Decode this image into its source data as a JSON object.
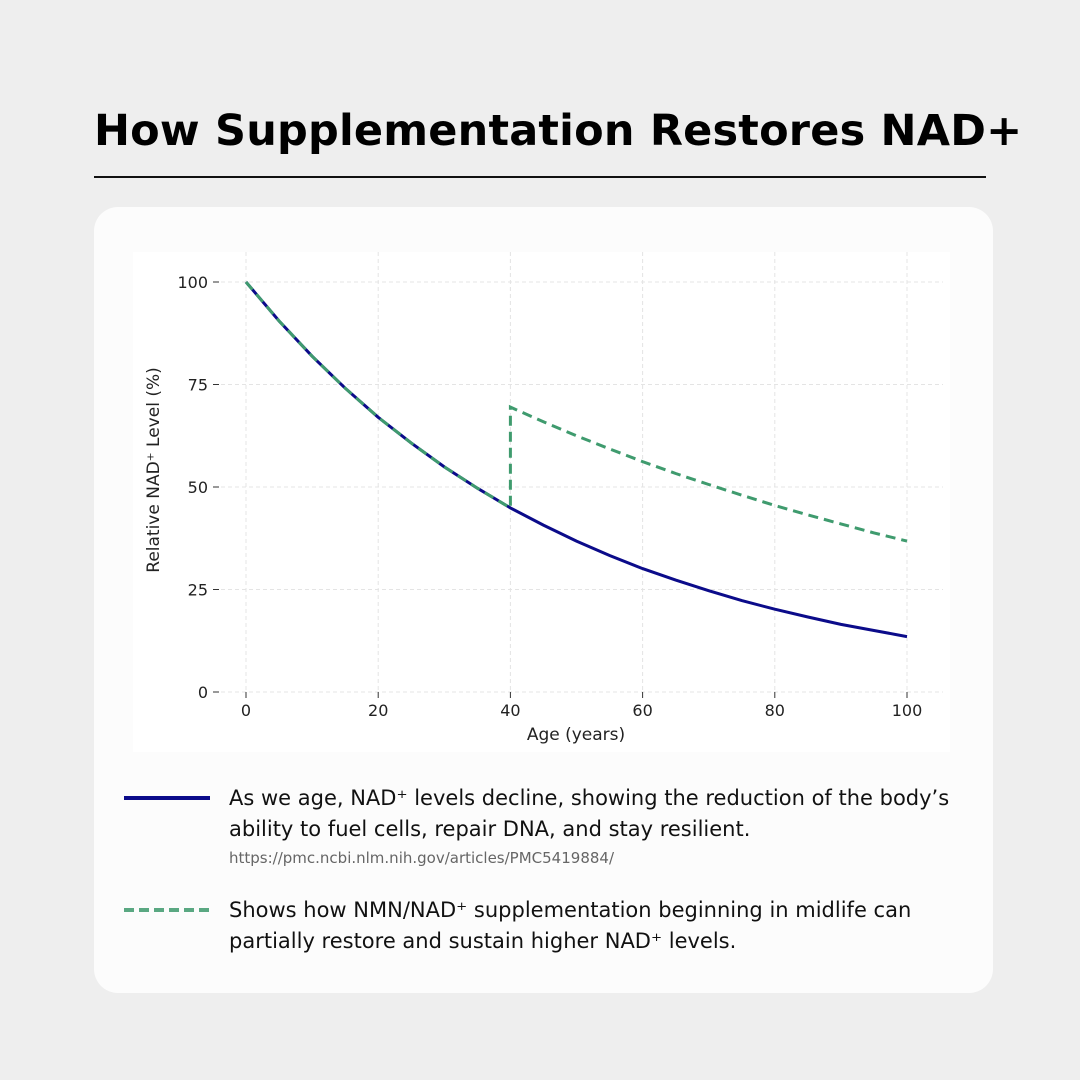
{
  "title": "How Supplementation Restores NAD+",
  "legend": [
    {
      "text": "As we age, NAD⁺ levels decline, showing the reduction of the body’s ability to fuel cells, repair DNA, and stay resilient.",
      "source": "https://pmc.ncbi.nlm.nih.gov/articles/PMC5419884/",
      "color": "#0b0b8a",
      "style": "solid"
    },
    {
      "text": "Shows how NMN/NAD⁺ supplementation beginning in midlife can partially restore and sustain higher NAD⁺ levels.",
      "color": "#3f9b6e",
      "style": "dashed"
    }
  ],
  "chart_data": {
    "type": "line",
    "xlabel": "Age (years)",
    "ylabel": "Relative NAD⁺ Level (%)",
    "xlim": [
      -5,
      105
    ],
    "ylim": [
      0,
      105
    ],
    "xticks": [
      "0",
      "20",
      "40",
      "60",
      "80",
      "100"
    ],
    "yticks": [
      "0",
      "25",
      "50",
      "75",
      "100"
    ],
    "grid": true,
    "series": [
      {
        "color": "#0b0b8a",
        "style": "solid",
        "x": [
          0,
          5,
          10,
          15,
          20,
          25,
          30,
          35,
          40,
          45,
          50,
          55,
          60,
          65,
          70,
          75,
          80,
          85,
          90,
          95,
          100
        ],
        "y": [
          100,
          90.5,
          81.9,
          74.1,
          67.0,
          60.7,
          54.9,
          49.7,
          44.9,
          40.7,
          36.8,
          33.3,
          30.1,
          27.3,
          24.7,
          22.3,
          20.2,
          18.3,
          16.5,
          15.0,
          13.5
        ]
      },
      {
        "color": "#3f9b6e",
        "style": "dashed",
        "x": [
          0,
          5,
          10,
          15,
          20,
          25,
          30,
          35,
          40,
          40,
          45,
          50,
          55,
          60,
          65,
          70,
          75,
          80,
          85,
          90,
          95,
          100
        ],
        "y": [
          100,
          90.5,
          81.9,
          74.1,
          67.0,
          60.7,
          54.9,
          49.7,
          44.9,
          69.5,
          65.9,
          62.5,
          59.3,
          56.2,
          53.3,
          50.6,
          48.0,
          45.5,
          43.2,
          41.0,
          38.8,
          36.8
        ]
      }
    ]
  }
}
